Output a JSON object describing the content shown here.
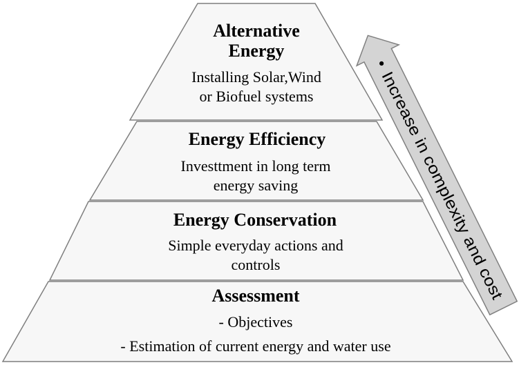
{
  "pyramid": {
    "tiers": [
      {
        "title_lines": [
          "Alternative",
          "Energy"
        ],
        "body_lines": [
          "Installing Solar,Wind",
          "or Biofuel systems"
        ]
      },
      {
        "title_lines": [
          "Energy Efficiency"
        ],
        "body_lines": [
          "Investtment in long term",
          "energy saving"
        ]
      },
      {
        "title_lines": [
          "Energy Conservation"
        ],
        "body_lines": [
          "Simple everyday actions and",
          "controls"
        ]
      },
      {
        "title_lines": [
          "Assessment"
        ],
        "body_lines": [
          "- Objectives",
          "- Estimation of current energy and water use"
        ]
      }
    ]
  },
  "arrow": {
    "label": "Increase in complexity and cost",
    "bullet": "•"
  },
  "colors": {
    "tier_fill": "#f7f7f7",
    "tier_stroke": "#7f7f7f",
    "arrow_fill": "#d4d4d4",
    "arrow_stroke": "#808080",
    "text": "#000000"
  }
}
